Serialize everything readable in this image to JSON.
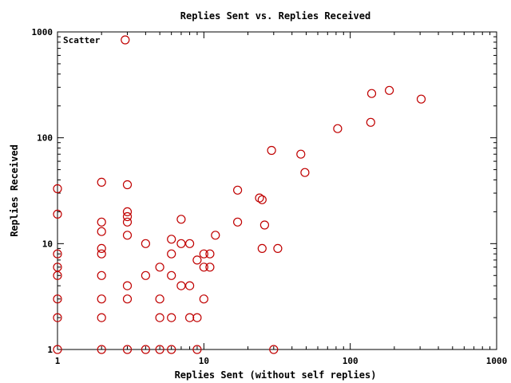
{
  "chart_data": {
    "type": "scatter",
    "title": "Replies Sent vs. Replies Received",
    "xlabel": "Replies Sent (without self replies)",
    "ylabel": "Replies Received",
    "xscale": "log",
    "yscale": "log",
    "xlim": [
      1,
      1000
    ],
    "ylim": [
      1,
      1000
    ],
    "x_ticks": [
      1,
      10,
      100,
      1000
    ],
    "y_ticks": [
      1,
      10,
      100,
      1000
    ],
    "x_tick_labels": [
      "1",
      "10",
      "100",
      "1000"
    ],
    "y_tick_labels": [
      "1",
      "10",
      "100",
      "1000"
    ],
    "grid": false,
    "legend_position": "top-left",
    "marker_color": "#c00000",
    "series": [
      {
        "name": "Scatter",
        "points": [
          [
            2.9,
            840
          ],
          [
            1,
            33
          ],
          [
            1,
            19
          ],
          [
            1,
            8
          ],
          [
            1,
            6
          ],
          [
            1,
            5
          ],
          [
            1,
            3
          ],
          [
            1,
            2
          ],
          [
            1,
            1
          ],
          [
            2,
            38
          ],
          [
            2,
            16
          ],
          [
            2,
            13
          ],
          [
            2,
            9
          ],
          [
            2,
            8
          ],
          [
            2,
            5
          ],
          [
            2,
            3
          ],
          [
            2,
            2
          ],
          [
            2,
            1
          ],
          [
            3,
            36
          ],
          [
            3,
            20
          ],
          [
            3,
            18
          ],
          [
            3,
            16
          ],
          [
            3,
            12
          ],
          [
            3,
            4
          ],
          [
            3,
            3
          ],
          [
            3,
            1
          ],
          [
            4,
            10
          ],
          [
            4,
            5
          ],
          [
            4,
            1
          ],
          [
            5,
            6
          ],
          [
            5,
            3
          ],
          [
            5,
            2
          ],
          [
            5,
            1
          ],
          [
            6,
            11
          ],
          [
            6,
            8
          ],
          [
            6,
            5
          ],
          [
            6,
            2
          ],
          [
            6,
            1
          ],
          [
            7,
            17
          ],
          [
            7,
            10
          ],
          [
            7,
            4
          ],
          [
            8,
            10
          ],
          [
            8,
            4
          ],
          [
            8,
            2
          ],
          [
            9,
            7
          ],
          [
            9,
            2
          ],
          [
            9,
            1
          ],
          [
            10,
            8
          ],
          [
            10,
            6
          ],
          [
            10,
            3
          ],
          [
            11,
            8
          ],
          [
            11,
            6
          ],
          [
            12,
            12
          ],
          [
            17,
            32
          ],
          [
            17,
            16
          ],
          [
            24,
            27
          ],
          [
            25,
            26
          ],
          [
            25,
            9
          ],
          [
            26,
            15
          ],
          [
            29,
            76
          ],
          [
            30,
            1
          ],
          [
            32,
            9
          ],
          [
            46,
            70
          ],
          [
            49,
            47
          ],
          [
            82,
            122
          ],
          [
            138,
            140
          ],
          [
            140,
            262
          ],
          [
            185,
            280
          ],
          [
            305,
            232
          ]
        ]
      }
    ]
  }
}
